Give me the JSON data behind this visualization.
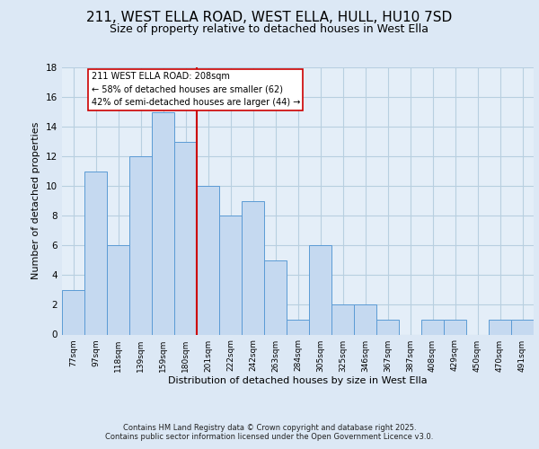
{
  "title1": "211, WEST ELLA ROAD, WEST ELLA, HULL, HU10 7SD",
  "title2": "Size of property relative to detached houses in West Ella",
  "xlabel": "Distribution of detached houses by size in West Ella",
  "ylabel": "Number of detached properties",
  "bin_labels": [
    "77sqm",
    "97sqm",
    "118sqm",
    "139sqm",
    "159sqm",
    "180sqm",
    "201sqm",
    "222sqm",
    "242sqm",
    "263sqm",
    "284sqm",
    "305sqm",
    "325sqm",
    "346sqm",
    "367sqm",
    "387sqm",
    "408sqm",
    "429sqm",
    "450sqm",
    "470sqm",
    "491sqm"
  ],
  "bar_heights": [
    3,
    11,
    6,
    12,
    15,
    13,
    10,
    8,
    9,
    5,
    1,
    6,
    2,
    2,
    1,
    0,
    1,
    1,
    0,
    1,
    1
  ],
  "bar_color": "#c5d9f0",
  "bar_edgecolor": "#5b9bd5",
  "vline_x_index": 6,
  "vline_color": "#cc0000",
  "annotation_title": "211 WEST ELLA ROAD: 208sqm",
  "annotation_line2": "← 58% of detached houses are smaller (62)",
  "annotation_line3": "42% of semi-detached houses are larger (44) →",
  "annotation_box_edgecolor": "#cc0000",
  "annotation_box_facecolor": "#ffffff",
  "ylim": [
    0,
    18
  ],
  "yticks": [
    0,
    2,
    4,
    6,
    8,
    10,
    12,
    14,
    16,
    18
  ],
  "bg_color": "#dce8f5",
  "plot_bg_color": "#e4eef8",
  "footer1": "Contains HM Land Registry data © Crown copyright and database right 2025.",
  "footer2": "Contains public sector information licensed under the Open Government Licence v3.0.",
  "title1_fontsize": 11,
  "title2_fontsize": 9,
  "xlabel_fontsize": 8,
  "ylabel_fontsize": 8
}
